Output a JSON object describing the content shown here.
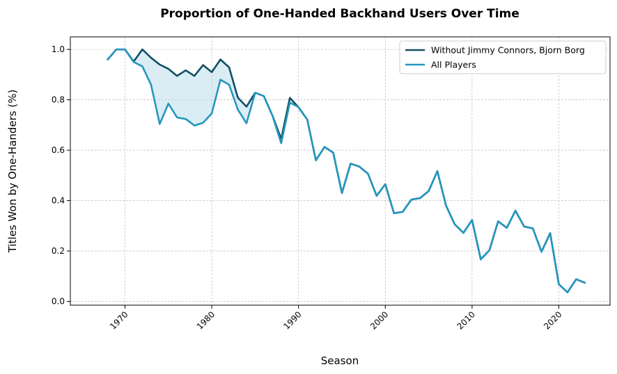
{
  "chart_data": {
    "type": "line",
    "title": "Proportion of One-Handed Backhand Users Over Time",
    "xlabel": "Season",
    "ylabel": "Titles Won by One-Handers (%)",
    "xlim": [
      1963.7,
      2025.9
    ],
    "ylim": [
      -0.015,
      1.05
    ],
    "xticks": [
      1970,
      1980,
      1990,
      2000,
      2010,
      2020
    ],
    "yticks": [
      0.0,
      0.2,
      0.4,
      0.6,
      0.8,
      1.0
    ],
    "ytick_labels": [
      "0.0",
      "0.2",
      "0.4",
      "0.6",
      "0.8",
      "1.0"
    ],
    "grid": true,
    "legend_position": "top-right",
    "x": [
      1968,
      1969,
      1970,
      1971,
      1972,
      1973,
      1974,
      1975,
      1976,
      1977,
      1978,
      1979,
      1980,
      1981,
      1982,
      1983,
      1984,
      1985,
      1986,
      1987,
      1988,
      1989,
      1990,
      1991,
      1992,
      1993,
      1994,
      1995,
      1996,
      1997,
      1998,
      1999,
      2000,
      2001,
      2002,
      2003,
      2004,
      2005,
      2006,
      2007,
      2008,
      2009,
      2010,
      2011,
      2012,
      2013,
      2014,
      2015,
      2016,
      2017,
      2018,
      2019,
      2020,
      2021,
      2022,
      2023
    ],
    "series": [
      {
        "name": "Without Jimmy Connors, Bjorn Borg",
        "color": "#124e63",
        "values": [
          0.96,
          1.0,
          1.0,
          0.952,
          1.0,
          0.967,
          0.94,
          0.923,
          0.895,
          0.917,
          0.895,
          0.938,
          0.91,
          0.96,
          0.929,
          0.809,
          0.773,
          0.828,
          0.815,
          0.737,
          0.645,
          0.808,
          0.77,
          0.722,
          0.56,
          0.613,
          0.59,
          0.43,
          0.547,
          0.535,
          0.507,
          0.419,
          0.465,
          0.35,
          0.355,
          0.404,
          0.41,
          0.438,
          0.517,
          0.38,
          0.306,
          0.272,
          0.323,
          0.167,
          0.203,
          0.318,
          0.292,
          0.36,
          0.297,
          0.29,
          0.197,
          0.271,
          0.068,
          0.036,
          0.088,
          0.074
        ]
      },
      {
        "name": "All Players",
        "color": "#2596be",
        "values": [
          0.96,
          1.0,
          1.0,
          0.95,
          0.933,
          0.86,
          0.704,
          0.785,
          0.73,
          0.724,
          0.698,
          0.709,
          0.746,
          0.88,
          0.86,
          0.762,
          0.707,
          0.828,
          0.815,
          0.737,
          0.628,
          0.789,
          0.771,
          0.722,
          0.56,
          0.613,
          0.59,
          0.43,
          0.547,
          0.535,
          0.507,
          0.419,
          0.465,
          0.35,
          0.355,
          0.404,
          0.41,
          0.438,
          0.517,
          0.38,
          0.306,
          0.272,
          0.323,
          0.167,
          0.203,
          0.318,
          0.292,
          0.36,
          0.297,
          0.29,
          0.197,
          0.271,
          0.068,
          0.036,
          0.088,
          0.074
        ]
      }
    ],
    "fill_between": {
      "color": "#add8e6",
      "opacity": 0.45
    }
  }
}
